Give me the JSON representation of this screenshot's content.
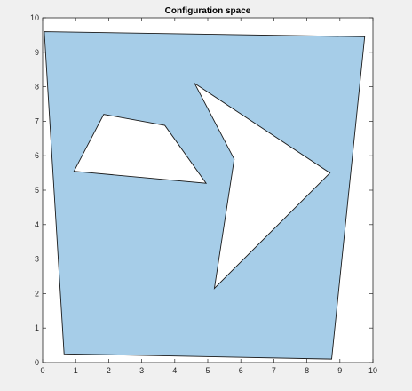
{
  "chart_data": {
    "type": "area",
    "title": "Configuration space",
    "xlabel": "",
    "ylabel": "",
    "xlim": [
      0,
      10
    ],
    "ylim": [
      0,
      10
    ],
    "x_ticks": [
      "0",
      "1",
      "2",
      "3",
      "4",
      "5",
      "6",
      "7",
      "8",
      "9",
      "10"
    ],
    "y_ticks": [
      "0",
      "1",
      "2",
      "3",
      "4",
      "5",
      "6",
      "7",
      "8",
      "9",
      "10"
    ],
    "grid": false,
    "legend": "none",
    "polygons": [
      {
        "role": "free-space",
        "fill": "#a6cde8",
        "points": [
          [
            0.05,
            9.6
          ],
          [
            9.75,
            9.45
          ],
          [
            8.75,
            0.1
          ],
          [
            0.65,
            0.25
          ]
        ]
      },
      {
        "role": "obstacle",
        "fill": "#ffffff",
        "points": [
          [
            0.95,
            5.55
          ],
          [
            1.85,
            7.2
          ],
          [
            3.7,
            6.88
          ],
          [
            4.95,
            5.2
          ]
        ]
      },
      {
        "role": "obstacle",
        "fill": "#ffffff",
        "points": [
          [
            4.6,
            8.1
          ],
          [
            5.8,
            5.9
          ],
          [
            5.2,
            2.15
          ],
          [
            8.7,
            5.5
          ]
        ]
      }
    ]
  },
  "colors": {
    "figure_background": "#f0f0f0",
    "axes_background": "#ffffff",
    "axes_edge": "#262626",
    "polygon_edge": "#1a1a1a"
  }
}
